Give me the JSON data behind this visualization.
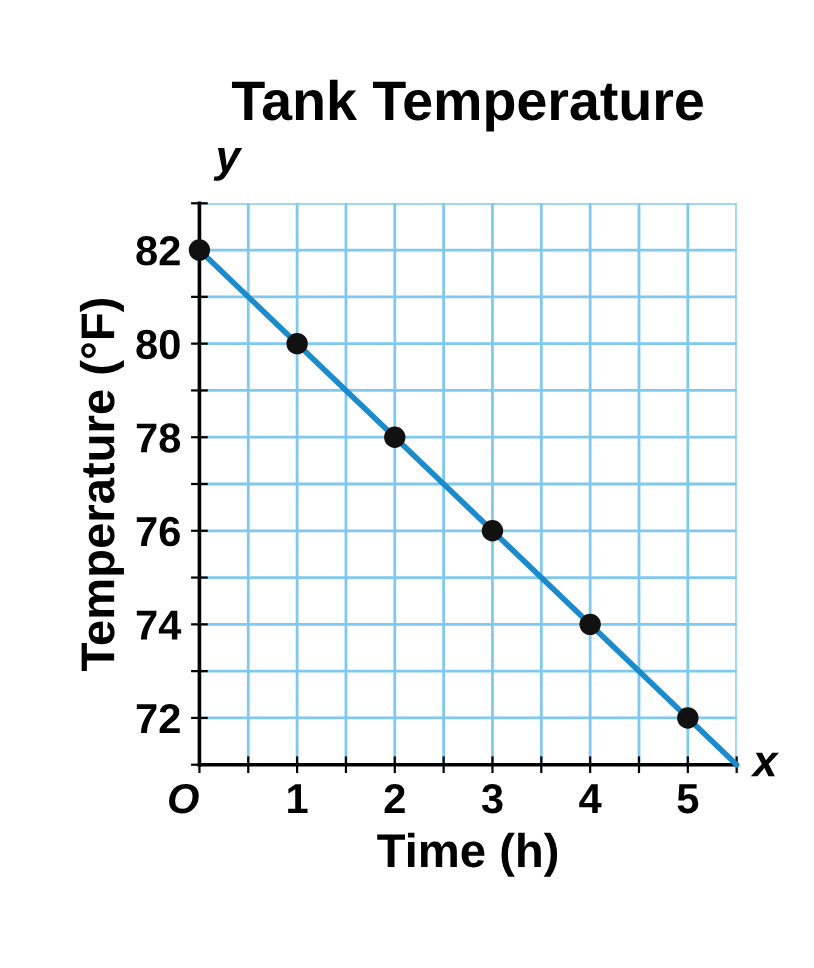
{
  "chart_data": {
    "type": "line",
    "title": "Tank Temperature",
    "xlabel": "Time (h)",
    "ylabel": "Temperature (°F)",
    "series": [
      {
        "color": "#1a8bcc",
        "x": [
          0,
          5.5
        ],
        "values": [
          82,
          71
        ],
        "marker": "none"
      },
      {
        "type": "scatter",
        "color": "#111111",
        "x": [
          0,
          1,
          2,
          3,
          4,
          5
        ],
        "values": [
          82,
          80,
          78,
          76,
          74,
          72
        ],
        "marker": "circle"
      }
    ],
    "xlim": [
      0,
      5.5
    ],
    "ylim": [
      71,
      83
    ],
    "xticks": [
      {
        "value": 0,
        "label": "O"
      },
      {
        "value": 0.5,
        "label": null
      },
      1,
      {
        "value": 1.5,
        "label": null
      },
      2,
      {
        "value": 2.5,
        "label": null
      },
      3,
      {
        "value": 3.5,
        "label": null
      },
      4,
      {
        "value": 4.5,
        "label": null
      },
      5,
      {
        "value": 5.5,
        "label": null
      }
    ],
    "yticks": [
      {
        "value": 71,
        "label": null
      },
      72,
      {
        "value": 73,
        "label": null
      },
      74,
      {
        "value": 75,
        "label": null
      },
      76,
      {
        "value": 77,
        "label": null
      },
      78,
      {
        "value": 79,
        "label": null
      },
      80,
      {
        "value": 81,
        "label": null
      },
      82,
      {
        "value": 83,
        "label": null
      }
    ],
    "grid": true,
    "annotations": [
      "x",
      "y"
    ]
  }
}
